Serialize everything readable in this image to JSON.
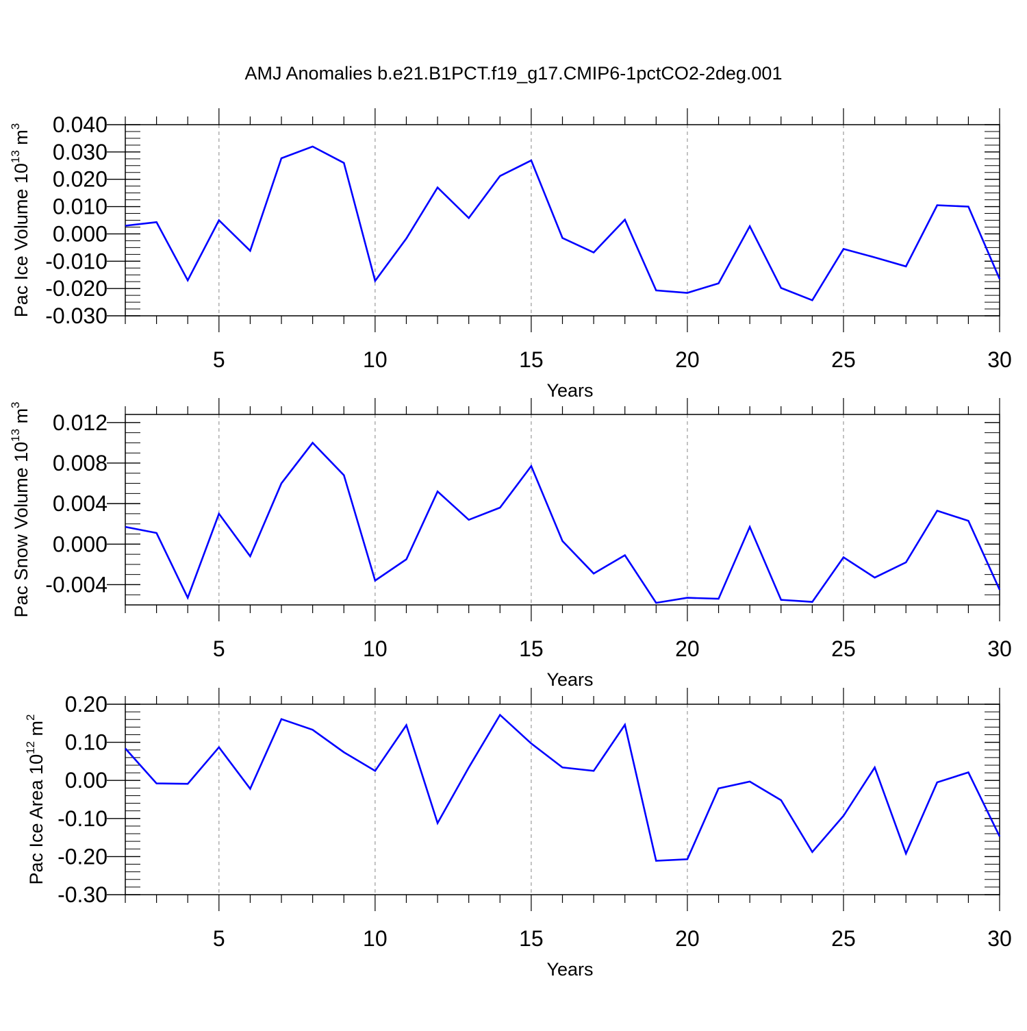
{
  "title": "AMJ Anomalies b.e21.B1PCT.f19_g17.CMIP6-1pctCO2-2deg.001",
  "colors": {
    "series": "#0000ff",
    "axis": "#000000",
    "grid": "#9a9a9a"
  },
  "chart_data": [
    {
      "type": "line",
      "ylabel_main": "Pac Ice Volume 10",
      "ylabel_exp": "13",
      "ylabel_unit": " m",
      "ylabel_unit_exp": "3",
      "xlabel": "Years",
      "xlim": [
        2,
        30
      ],
      "ylim": [
        -0.03,
        0.04
      ],
      "xticks": [
        5,
        10,
        15,
        20,
        25,
        30
      ],
      "xtick_labels": [
        "5",
        "10",
        "15",
        "20",
        "25",
        "30"
      ],
      "yticks": [
        -0.03,
        -0.02,
        -0.01,
        0.0,
        0.01,
        0.02,
        0.03,
        0.04
      ],
      "ytick_labels": [
        "-0.030",
        "-0.020",
        "-0.010",
        "0.000",
        "0.010",
        "0.020",
        "0.030",
        "0.040"
      ],
      "yminor_step": 0.0025,
      "series": [
        {
          "name": "Pac Ice Volume",
          "x": [
            2,
            3,
            4,
            5,
            6,
            7,
            8,
            9,
            10,
            11,
            12,
            13,
            14,
            15,
            16,
            17,
            18,
            19,
            20,
            21,
            22,
            23,
            24,
            25,
            26,
            27,
            28,
            29,
            30
          ],
          "values": [
            0.003,
            0.0043,
            -0.017,
            0.005,
            -0.0062,
            0.0277,
            0.032,
            0.026,
            -0.0172,
            -0.0017,
            0.017,
            0.0058,
            0.0212,
            0.0269,
            -0.0015,
            -0.0068,
            0.0052,
            -0.0207,
            -0.0216,
            -0.0181,
            0.0028,
            -0.0198,
            -0.0243,
            -0.0055,
            -0.0086,
            -0.0119,
            0.0105,
            0.01,
            -0.0165
          ]
        }
      ]
    },
    {
      "type": "line",
      "ylabel_main": "Pac Snow Volume 10",
      "ylabel_exp": "13",
      "ylabel_unit": " m",
      "ylabel_unit_exp": "3",
      "xlabel": "Years",
      "xlim": [
        2,
        30
      ],
      "ylim": [
        -0.006,
        0.0128
      ],
      "xticks": [
        5,
        10,
        15,
        20,
        25,
        30
      ],
      "xtick_labels": [
        "5",
        "10",
        "15",
        "20",
        "25",
        "30"
      ],
      "yticks": [
        -0.004,
        0.0,
        0.004,
        0.008,
        0.012
      ],
      "ytick_labels": [
        "-0.004",
        "0.000",
        "0.004",
        "0.008",
        "0.012"
      ],
      "yminor_step": 0.001,
      "series": [
        {
          "name": "Pac Snow Volume",
          "x": [
            2,
            3,
            4,
            5,
            6,
            7,
            8,
            9,
            10,
            11,
            12,
            13,
            14,
            15,
            16,
            17,
            18,
            19,
            20,
            21,
            22,
            23,
            24,
            25,
            26,
            27,
            28,
            29,
            30
          ],
          "values": [
            0.0017,
            0.0011,
            -0.0053,
            0.003,
            -0.0012,
            0.006,
            0.01,
            0.0068,
            -0.0036,
            -0.0015,
            0.0052,
            0.0024,
            0.0036,
            0.0077,
            0.0003,
            -0.0029,
            -0.0011,
            -0.0058,
            -0.0053,
            -0.0054,
            0.0017,
            -0.0055,
            -0.0057,
            -0.0013,
            -0.0033,
            -0.0018,
            0.0033,
            0.0023,
            -0.0045
          ]
        }
      ]
    },
    {
      "type": "line",
      "ylabel_main": "Pac Ice Area 10",
      "ylabel_exp": "12",
      "ylabel_unit": " m",
      "ylabel_unit_exp": "2",
      "xlabel": "Years",
      "xlim": [
        2,
        30
      ],
      "ylim": [
        -0.3,
        0.2
      ],
      "xticks": [
        5,
        10,
        15,
        20,
        25,
        30
      ],
      "xtick_labels": [
        "5",
        "10",
        "15",
        "20",
        "25",
        "30"
      ],
      "yticks": [
        -0.3,
        -0.2,
        -0.1,
        0.0,
        0.1,
        0.2
      ],
      "ytick_labels": [
        "-0.30",
        "-0.20",
        "-0.10",
        "0.00",
        "0.10",
        "0.20"
      ],
      "yminor_step": 0.02,
      "series": [
        {
          "name": "Pac Ice Area",
          "x": [
            2,
            3,
            4,
            5,
            6,
            7,
            8,
            9,
            10,
            11,
            12,
            13,
            14,
            15,
            16,
            17,
            18,
            19,
            20,
            21,
            22,
            23,
            24,
            25,
            26,
            27,
            28,
            29,
            30
          ],
          "values": [
            0.084,
            -0.008,
            -0.009,
            0.087,
            -0.022,
            0.161,
            0.133,
            0.074,
            0.025,
            0.145,
            -0.112,
            0.034,
            0.172,
            0.097,
            0.034,
            0.025,
            0.146,
            -0.211,
            -0.207,
            -0.021,
            -0.003,
            -0.052,
            -0.188,
            -0.093,
            0.034,
            -0.192,
            -0.005,
            0.021,
            -0.147
          ]
        }
      ]
    }
  ]
}
